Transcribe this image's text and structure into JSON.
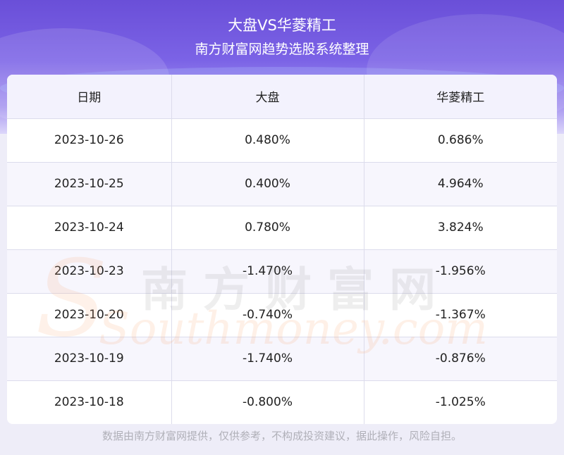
{
  "header": {
    "title": "大盘VS华菱精工",
    "subtitle": "南方财富网趋势选股系统整理"
  },
  "table": {
    "columns": [
      "日期",
      "大盘",
      "华菱精工"
    ],
    "rows": [
      [
        "2023-10-26",
        "0.480%",
        "0.686%"
      ],
      [
        "2023-10-25",
        "0.400%",
        "4.964%"
      ],
      [
        "2023-10-24",
        "0.780%",
        "3.824%"
      ],
      [
        "2023-10-23",
        "-1.470%",
        "-1.956%"
      ],
      [
        "2023-10-20",
        "-0.740%",
        "-1.367%"
      ],
      [
        "2023-10-19",
        "-1.740%",
        "-0.876%"
      ],
      [
        "2023-10-18",
        "-0.800%",
        "-1.025%"
      ]
    ]
  },
  "watermark": {
    "cn": "南方财富网",
    "en": "Southmoney.com"
  },
  "footer": {
    "disclaimer": "数据由南方财富网提供，仅供参考，不构成投资建议，据此操作，风险自担。"
  },
  "colors": {
    "header_gradient_top": "#6a4fd8",
    "header_row_bg": "#f3f2fd",
    "text": "#222222",
    "footer_text": "#b0b0b8"
  }
}
